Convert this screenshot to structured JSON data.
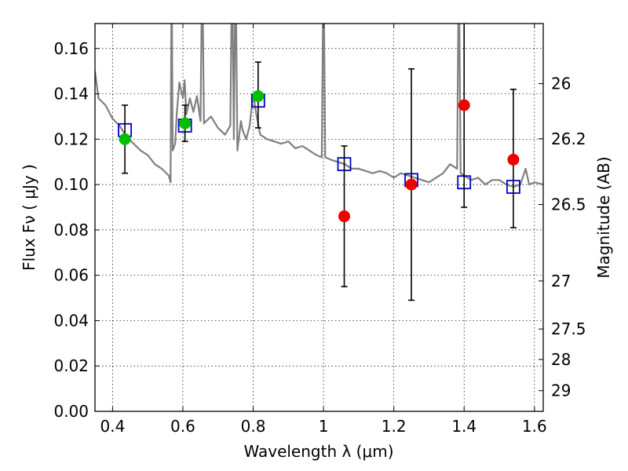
{
  "chart_data": {
    "type": "scatter",
    "xlabel": "Wavelength  λ (μm)",
    "ylabel": "Flux  Fν  ( μJy )",
    "y2label": "Magnitude (AB)",
    "xlim": [
      0.35,
      1.625
    ],
    "ylim": [
      0.0,
      0.171
    ],
    "grid": true,
    "x_ticks": [
      0.4,
      0.6,
      0.8,
      1.0,
      1.2,
      1.4,
      1.6
    ],
    "x_tick_labels": [
      "0.4",
      "0.6",
      "0.8",
      "1",
      "1.2",
      "1.4",
      "1.6"
    ],
    "y_ticks": [
      0.0,
      0.02,
      0.04,
      0.06,
      0.08,
      0.1,
      0.12,
      0.14,
      0.16
    ],
    "y_tick_labels": [
      "0.00",
      "0.02",
      "0.04",
      "0.06",
      "0.08",
      "0.10",
      "0.12",
      "0.14",
      "0.16"
    ],
    "y2_ticks": [
      {
        "label": "26",
        "flux": 0.1445
      },
      {
        "label": "26.2",
        "flux": 0.1202
      },
      {
        "label": "26.5",
        "flux": 0.0912
      },
      {
        "label": "27",
        "flux": 0.0575
      },
      {
        "label": "27.5",
        "flux": 0.0363
      },
      {
        "label": "28",
        "flux": 0.0229
      },
      {
        "label": "29",
        "flux": 0.0091
      }
    ],
    "series": [
      {
        "kind": "model-spectrum",
        "color": "#808080",
        "points": [
          [
            0.35,
            0.15
          ],
          [
            0.36,
            0.138
          ],
          [
            0.38,
            0.135
          ],
          [
            0.4,
            0.129
          ],
          [
            0.42,
            0.126
          ],
          [
            0.44,
            0.121
          ],
          [
            0.46,
            0.118
          ],
          [
            0.48,
            0.115
          ],
          [
            0.5,
            0.113
          ],
          [
            0.52,
            0.109
          ],
          [
            0.54,
            0.107
          ],
          [
            0.56,
            0.104
          ],
          [
            0.565,
            0.101
          ],
          [
            0.568,
            0.2
          ],
          [
            0.571,
            0.115
          ],
          [
            0.578,
            0.118
          ],
          [
            0.583,
            0.132
          ],
          [
            0.59,
            0.145
          ],
          [
            0.6,
            0.138
          ],
          [
            0.605,
            0.146
          ],
          [
            0.61,
            0.131
          ],
          [
            0.62,
            0.138
          ],
          [
            0.63,
            0.132
          ],
          [
            0.64,
            0.139
          ],
          [
            0.65,
            0.128
          ],
          [
            0.655,
            0.2
          ],
          [
            0.66,
            0.127
          ],
          [
            0.68,
            0.13
          ],
          [
            0.7,
            0.125
          ],
          [
            0.72,
            0.122
          ],
          [
            0.735,
            0.126
          ],
          [
            0.74,
            0.2
          ],
          [
            0.745,
            0.12
          ],
          [
            0.75,
            0.2
          ],
          [
            0.755,
            0.115
          ],
          [
            0.765,
            0.128
          ],
          [
            0.77,
            0.124
          ],
          [
            0.78,
            0.12
          ],
          [
            0.79,
            0.126
          ],
          [
            0.8,
            0.14
          ],
          [
            0.81,
            0.13
          ],
          [
            0.82,
            0.122
          ],
          [
            0.84,
            0.12
          ],
          [
            0.86,
            0.119
          ],
          [
            0.88,
            0.118
          ],
          [
            0.9,
            0.119
          ],
          [
            0.92,
            0.116
          ],
          [
            0.94,
            0.117
          ],
          [
            0.96,
            0.115
          ],
          [
            0.98,
            0.113
          ],
          [
            0.995,
            0.112
          ],
          [
            1.0,
            0.2
          ],
          [
            1.005,
            0.112
          ],
          [
            1.02,
            0.111
          ],
          [
            1.04,
            0.11
          ],
          [
            1.06,
            0.109
          ],
          [
            1.08,
            0.107
          ],
          [
            1.1,
            0.107
          ],
          [
            1.12,
            0.106
          ],
          [
            1.14,
            0.105
          ],
          [
            1.16,
            0.106
          ],
          [
            1.18,
            0.105
          ],
          [
            1.2,
            0.103
          ],
          [
            1.22,
            0.105
          ],
          [
            1.24,
            0.104
          ],
          [
            1.26,
            0.103
          ],
          [
            1.28,
            0.102
          ],
          [
            1.3,
            0.101
          ],
          [
            1.32,
            0.103
          ],
          [
            1.34,
            0.105
          ],
          [
            1.36,
            0.109
          ],
          [
            1.38,
            0.107
          ],
          [
            1.385,
            0.2
          ],
          [
            1.39,
            0.105
          ],
          [
            1.4,
            0.104
          ],
          [
            1.42,
            0.102
          ],
          [
            1.44,
            0.103
          ],
          [
            1.46,
            0.1
          ],
          [
            1.48,
            0.102
          ],
          [
            1.5,
            0.102
          ],
          [
            1.52,
            0.1
          ],
          [
            1.54,
            0.099
          ],
          [
            1.56,
            0.1
          ],
          [
            1.575,
            0.107
          ],
          [
            1.585,
            0.1
          ],
          [
            1.6,
            0.101
          ],
          [
            1.625,
            0.1
          ]
        ]
      },
      {
        "kind": "model-photometry",
        "marker": "open-square",
        "color": "#0000cc",
        "x": [
          0.435,
          0.606,
          0.814,
          1.059,
          1.25,
          1.4,
          1.54
        ],
        "y": [
          0.124,
          0.126,
          0.137,
          0.109,
          0.102,
          0.101,
          0.099
        ]
      },
      {
        "kind": "errorbars",
        "color": "#000000",
        "x": [
          0.435,
          0.606,
          0.814,
          1.059,
          1.25,
          1.4,
          1.54
        ],
        "low": [
          0.105,
          0.119,
          0.125,
          0.055,
          0.049,
          0.09,
          0.081
        ],
        "high": [
          0.135,
          0.135,
          0.154,
          0.117,
          0.151,
          0.2,
          0.142
        ]
      },
      {
        "kind": "observed-green",
        "marker": "filled-circle",
        "color": "#00c000",
        "x": [
          0.435,
          0.606,
          0.814
        ],
        "y": [
          0.12,
          0.127,
          0.139
        ]
      },
      {
        "kind": "observed-red",
        "marker": "filled-circle",
        "color": "#ee0000",
        "x": [
          1.059,
          1.25,
          1.4,
          1.54
        ],
        "y": [
          0.086,
          0.1,
          0.135,
          0.111
        ]
      }
    ]
  }
}
